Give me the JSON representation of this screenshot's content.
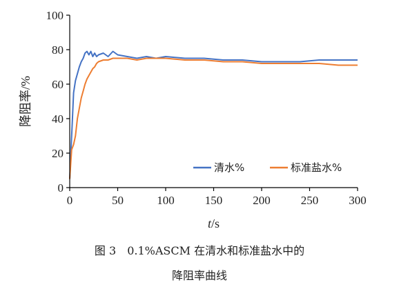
{
  "colors": {
    "clear_water": "#4472C4",
    "standard_brine": "#ED7D31",
    "axis": "#000000"
  },
  "caption": {
    "line1": "图 3　0.1%ASCM 在清水和标准盐水中的",
    "line2": "降阻率曲线"
  },
  "chart_data": {
    "type": "line",
    "title": "",
    "xlabel_italic": "t",
    "xlabel_unit": "/s",
    "ylabel": "降阻率/%",
    "xlim": [
      0,
      300
    ],
    "ylim": [
      0,
      100
    ],
    "xticks": [
      0,
      50,
      100,
      150,
      200,
      250,
      300
    ],
    "yticks": [
      0,
      20,
      40,
      60,
      80,
      100
    ],
    "legend_position": "bottom-right",
    "series": [
      {
        "name": "清水%",
        "color": "#4472C4",
        "x": [
          0,
          2,
          4,
          6,
          8,
          10,
          12,
          14,
          16,
          18,
          20,
          22,
          24,
          26,
          28,
          30,
          35,
          40,
          45,
          50,
          60,
          70,
          80,
          90,
          100,
          120,
          140,
          160,
          180,
          200,
          220,
          240,
          260,
          280,
          300
        ],
        "y": [
          5,
          30,
          55,
          62,
          66,
          70,
          73,
          75,
          78,
          79,
          77,
          79,
          76,
          78,
          76,
          77,
          78,
          76,
          79,
          77,
          76,
          75,
          76,
          75,
          76,
          75,
          75,
          74,
          74,
          73,
          73,
          73,
          74,
          74,
          74
        ]
      },
      {
        "name": "标准盐水%",
        "color": "#ED7D31",
        "x": [
          0,
          2,
          4,
          6,
          8,
          10,
          12,
          14,
          16,
          18,
          20,
          22,
          24,
          26,
          28,
          30,
          35,
          40,
          45,
          50,
          60,
          70,
          80,
          90,
          100,
          120,
          140,
          160,
          180,
          200,
          220,
          240,
          260,
          280,
          300
        ],
        "y": [
          5,
          22,
          25,
          30,
          40,
          46,
          52,
          56,
          60,
          63,
          65,
          67,
          69,
          70,
          72,
          73,
          74,
          74,
          75,
          75,
          75,
          74,
          75,
          75,
          75,
          74,
          74,
          73,
          73,
          72,
          72,
          72,
          72,
          71,
          71
        ]
      }
    ]
  }
}
